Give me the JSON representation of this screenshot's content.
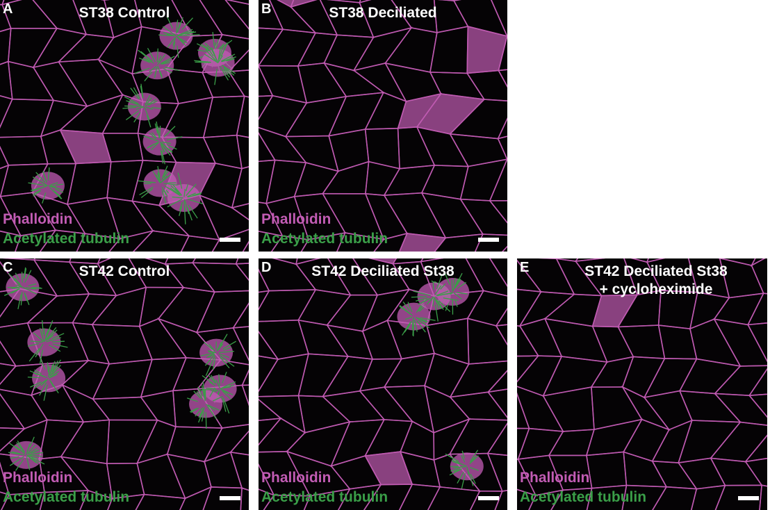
{
  "figure": {
    "colors": {
      "phalloidin": "#c25cb4",
      "acetylated_tubulin": "#3a9e48",
      "background": "#050305"
    },
    "panels": [
      {
        "letter": "A",
        "title": "ST38 Control",
        "stain1": "Phalloidin",
        "stain2": "Acetylated tubulin",
        "ciliated_cells": 9,
        "filled_cells": 4,
        "seed": 3
      },
      {
        "letter": "B",
        "title": "ST38 Deciliated",
        "stain1": "Phalloidin",
        "stain2": "Acetylated tubulin",
        "ciliated_cells": 0,
        "filled_cells": 6,
        "seed": 7
      },
      {
        "letter": "C",
        "title": "ST42 Control",
        "stain1": "Phalloidin",
        "stain2": "Acetylated tubulin",
        "ciliated_cells": 7,
        "filled_cells": 0,
        "seed": 11
      },
      {
        "letter": "D",
        "title": "ST42 Deciliated St38",
        "stain1": "Phalloidin",
        "stain2": "Acetylated tubulin",
        "ciliated_cells": 4,
        "filled_cells": 2,
        "seed": 19
      },
      {
        "letter": "E",
        "title": "ST42 Deciliated St38\n+ cycloheximide",
        "stain1": "Phalloidin",
        "stain2": "Acetylated tubulin",
        "ciliated_cells": 0,
        "filled_cells": 1,
        "seed": 23
      }
    ]
  }
}
